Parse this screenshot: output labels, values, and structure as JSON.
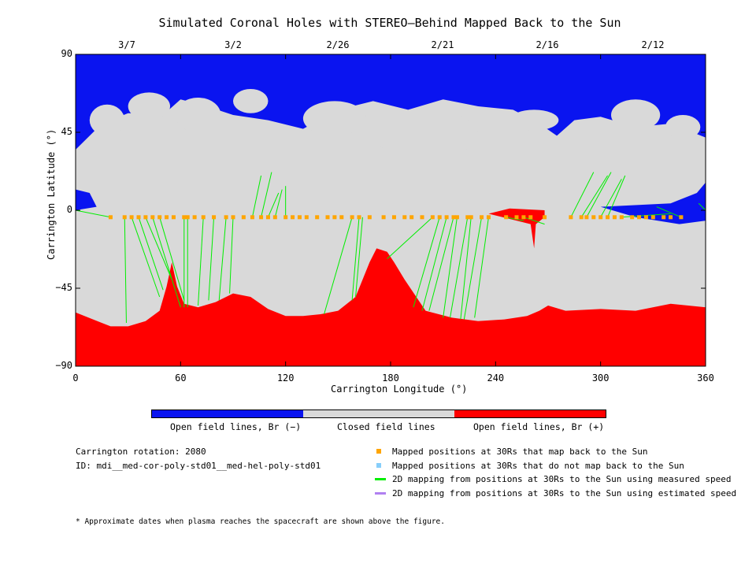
{
  "title": "Simulated Coronal Holes with STEREO–Behind Mapped Back to the Sun",
  "xlabel": "Carrington Longitude (°)",
  "ylabel": "Carrington Latitude (°)",
  "xticks": [
    "0",
    "60",
    "120",
    "180",
    "240",
    "300",
    "360"
  ],
  "yticks": [
    "90",
    "45",
    "0",
    "−45",
    "−90"
  ],
  "top_dates": [
    "3/7",
    "3/2",
    "2/26",
    "2/21",
    "2/16",
    "2/12"
  ],
  "colorbar": {
    "labels": [
      "Open field lines, Br (−)",
      "Closed field lines",
      "Open field lines, Br (+)"
    ],
    "colors": [
      "#0a14f0",
      "#d9d9d9",
      "#ff0000"
    ]
  },
  "info": {
    "rotation": "Carrington rotation: 2080",
    "id": "ID: mdi__med-cor-poly-std01__med-hel-poly-std01"
  },
  "legend": [
    {
      "label": "Mapped positions at 30Rs that map back to the Sun",
      "color": "#ffa500",
      "kind": "square"
    },
    {
      "label": "Mapped positions at 30Rs that do not map back to the Sun",
      "color": "#87cefa",
      "kind": "square"
    },
    {
      "label": "2D mapping from positions at 30Rs to the Sun using measured speed",
      "color": "#00ee00",
      "kind": "line"
    },
    {
      "label": "2D mapping from positions at 30Rs to the Sun using estimated speed",
      "color": "#b080f0",
      "kind": "line"
    }
  ],
  "footnote": "* Approximate dates when plasma reaches the spacecraft are shown above the figure.",
  "chart_data": {
    "type": "heatmap",
    "xlim": [
      0,
      360
    ],
    "ylim": [
      -90,
      90
    ],
    "classes": [
      "Open field lines, Br (−)",
      "Closed field lines",
      "Open field lines, Br (+)"
    ],
    "south_boundary_lat": [
      [
        0,
        -59
      ],
      [
        10,
        -63
      ],
      [
        20,
        -67
      ],
      [
        30,
        -67
      ],
      [
        40,
        -64
      ],
      [
        48,
        -58
      ],
      [
        52,
        -44
      ],
      [
        55,
        -30
      ],
      [
        58,
        -44
      ],
      [
        62,
        -54
      ],
      [
        70,
        -56
      ],
      [
        80,
        -53
      ],
      [
        90,
        -48
      ],
      [
        100,
        -50
      ],
      [
        110,
        -57
      ],
      [
        120,
        -61
      ],
      [
        130,
        -61
      ],
      [
        140,
        -60
      ],
      [
        150,
        -58
      ],
      [
        160,
        -50
      ],
      [
        168,
        -30
      ],
      [
        172,
        -22
      ],
      [
        178,
        -24
      ],
      [
        182,
        -30
      ],
      [
        188,
        -40
      ],
      [
        200,
        -58
      ],
      [
        215,
        -62
      ],
      [
        230,
        -64
      ],
      [
        245,
        -63
      ],
      [
        258,
        -61
      ],
      [
        265,
        -58
      ],
      [
        270,
        -55
      ],
      [
        280,
        -58
      ],
      [
        300,
        -57
      ],
      [
        320,
        -58
      ],
      [
        340,
        -54
      ],
      [
        360,
        -56
      ]
    ],
    "north_boundary_lat": [
      [
        0,
        35
      ],
      [
        15,
        50
      ],
      [
        30,
        56
      ],
      [
        50,
        55
      ],
      [
        60,
        64
      ],
      [
        75,
        60
      ],
      [
        90,
        55
      ],
      [
        110,
        52
      ],
      [
        130,
        47
      ],
      [
        150,
        58
      ],
      [
        170,
        63
      ],
      [
        190,
        58
      ],
      [
        210,
        64
      ],
      [
        230,
        60
      ],
      [
        250,
        58
      ],
      [
        265,
        50
      ],
      [
        275,
        43
      ],
      [
        285,
        52
      ],
      [
        300,
        54
      ],
      [
        320,
        48
      ],
      [
        340,
        50
      ],
      [
        360,
        42
      ]
    ],
    "positive_hole_near_equator": {
      "lon": [
        236,
        268
      ],
      "lat": [
        -5,
        1
      ],
      "tail_to_lat": -22,
      "tail_lon": 262
    },
    "mapped_points_lat": -4,
    "mapped_points_lon": [
      20,
      28,
      32,
      36,
      40,
      44,
      48,
      52,
      56,
      62,
      64,
      68,
      73,
      79,
      86,
      90,
      96,
      101,
      106,
      110,
      114,
      120,
      124,
      128,
      132,
      138,
      144,
      148,
      152,
      158,
      162,
      168,
      176,
      182,
      188,
      192,
      198,
      204,
      208,
      212,
      216,
      218,
      224,
      226,
      232,
      236,
      246,
      252,
      256,
      260,
      268,
      283,
      289,
      292,
      296,
      300,
      304,
      308,
      312,
      318,
      322,
      326,
      330,
      336,
      340,
      346
    ],
    "mapping_lines": [
      {
        "from": [
          20,
          -4
        ],
        "to": [
          0,
          0
        ]
      },
      {
        "from": [
          28,
          -4
        ],
        "to": [
          29,
          -65
        ]
      },
      {
        "from": [
          32,
          -4
        ],
        "to": [
          48,
          -50
        ]
      },
      {
        "from": [
          36,
          -4
        ],
        "to": [
          50,
          -46
        ]
      },
      {
        "from": [
          40,
          -4
        ],
        "to": [
          55,
          -40
        ]
      },
      {
        "from": [
          44,
          -4
        ],
        "to": [
          60,
          -56
        ]
      },
      {
        "from": [
          48,
          -4
        ],
        "to": [
          62,
          -52
        ]
      },
      {
        "from": [
          62,
          -4
        ],
        "to": [
          62,
          -56
        ]
      },
      {
        "from": [
          64,
          -4
        ],
        "to": [
          64,
          -56
        ]
      },
      {
        "from": [
          73,
          -4
        ],
        "to": [
          70,
          -55
        ]
      },
      {
        "from": [
          79,
          -4
        ],
        "to": [
          76,
          -52
        ]
      },
      {
        "from": [
          86,
          -4
        ],
        "to": [
          82,
          -52
        ]
      },
      {
        "from": [
          90,
          -4
        ],
        "to": [
          88,
          -48
        ]
      },
      {
        "from": [
          101,
          -4
        ],
        "to": [
          106,
          20
        ]
      },
      {
        "from": [
          106,
          -4
        ],
        "to": [
          112,
          22
        ]
      },
      {
        "from": [
          110,
          -4
        ],
        "to": [
          116,
          10
        ]
      },
      {
        "from": [
          114,
          -4
        ],
        "to": [
          118,
          12
        ]
      },
      {
        "from": [
          120,
          -4
        ],
        "to": [
          120,
          14
        ]
      },
      {
        "from": [
          158,
          -4
        ],
        "to": [
          142,
          -60
        ]
      },
      {
        "from": [
          162,
          -4
        ],
        "to": [
          158,
          -52
        ]
      },
      {
        "from": [
          164,
          -4
        ],
        "to": [
          160,
          -50
        ]
      },
      {
        "from": [
          204,
          -4
        ],
        "to": [
          178,
          -28
        ]
      },
      {
        "from": [
          208,
          -4
        ],
        "to": [
          193,
          -56
        ]
      },
      {
        "from": [
          212,
          -4
        ],
        "to": [
          198,
          -58
        ]
      },
      {
        "from": [
          216,
          -4
        ],
        "to": [
          202,
          -58
        ]
      },
      {
        "from": [
          218,
          -4
        ],
        "to": [
          210,
          -62
        ]
      },
      {
        "from": [
          224,
          -4
        ],
        "to": [
          214,
          -62
        ]
      },
      {
        "from": [
          226,
          -4
        ],
        "to": [
          220,
          -63
        ]
      },
      {
        "from": [
          232,
          -4
        ],
        "to": [
          222,
          -63
        ]
      },
      {
        "from": [
          236,
          -4
        ],
        "to": [
          228,
          -62
        ]
      },
      {
        "from": [
          246,
          -4
        ],
        "to": [
          256,
          -6
        ]
      },
      {
        "from": [
          256,
          -4
        ],
        "to": [
          268,
          -8
        ]
      },
      {
        "from": [
          283,
          -4
        ],
        "to": [
          296,
          22
        ]
      },
      {
        "from": [
          289,
          -4
        ],
        "to": [
          304,
          20
        ]
      },
      {
        "from": [
          292,
          -4
        ],
        "to": [
          306,
          22
        ]
      },
      {
        "from": [
          300,
          -4
        ],
        "to": [
          312,
          18
        ]
      },
      {
        "from": [
          304,
          -4
        ],
        "to": [
          314,
          20
        ]
      },
      {
        "from": [
          312,
          -4
        ],
        "to": [
          340,
          -2
        ]
      },
      {
        "from": [
          346,
          -4
        ],
        "to": [
          332,
          2
        ]
      },
      {
        "from": [
          360,
          0
        ],
        "to": [
          356,
          4
        ]
      }
    ]
  }
}
